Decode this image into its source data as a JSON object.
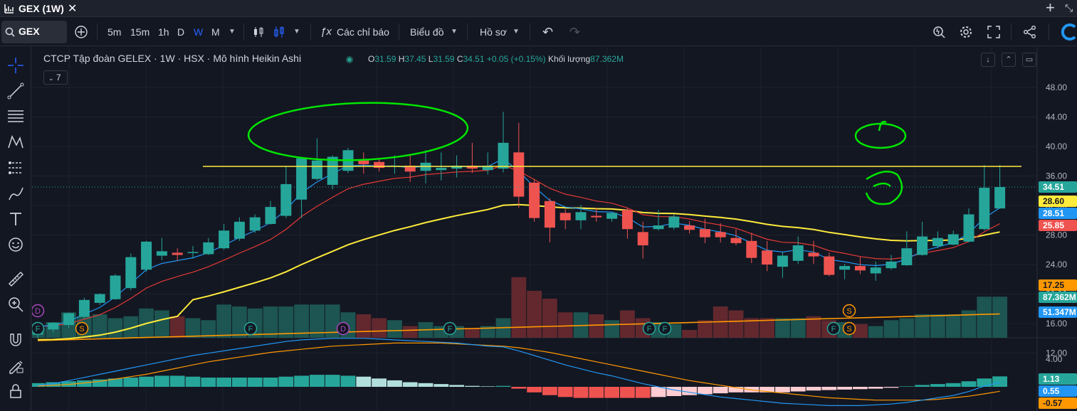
{
  "titlebar": {
    "title": "GEX (1W)"
  },
  "toolbar": {
    "symbol": "GEX",
    "intervals": [
      "5m",
      "15m",
      "1h",
      "D",
      "W",
      "M"
    ],
    "active_interval": "W",
    "indicators_label": "Các chỉ báo",
    "chart_label": "Biểu đồ",
    "profile_label": "Hồ sơ"
  },
  "legend": {
    "title": "CTCP Tập đoàn GELEX · 1W · HSX · Mô hình Heikin Ashi",
    "o_key": "O",
    "o_val": "31.59",
    "h_key": "H",
    "h_val": "37.45",
    "l_key": "L",
    "l_val": "31.59",
    "c_key": "C",
    "c_val": "34.51",
    "change": "+0.05 (+0.15%)",
    "vol_key": "Khối lượng",
    "vol_val": "87.362M",
    "indicator_count": "7"
  },
  "chart_data": {
    "type": "candlestick",
    "candle_style": "Heikin Ashi",
    "price_axis_ticks": [
      "48.00",
      "44.00",
      "40.00",
      "36.00",
      "32.00",
      "28.00",
      "24.00",
      "20.00",
      "16.00",
      "12.00"
    ],
    "osc_axis_ticks": [
      "4.00"
    ],
    "price_range": [
      10.0,
      50.0
    ],
    "colors": {
      "up": "#26a69a",
      "down": "#ef5350",
      "ema_fast": "#2196f3",
      "ema_mid": "#e53935",
      "ma_slow": "#ffeb3b",
      "ma_long": "#ff9800",
      "hline": "#ffeb3b",
      "annotation": "#00e600"
    },
    "candles": [
      {
        "o": 14.5,
        "h": 15.6,
        "l": 14.0,
        "c": 15.6
      },
      {
        "o": 15.2,
        "h": 16.2,
        "l": 14.8,
        "c": 16.1
      },
      {
        "o": 15.8,
        "h": 17.5,
        "l": 15.4,
        "c": 17.4
      },
      {
        "o": 16.9,
        "h": 19.5,
        "l": 16.7,
        "c": 19.2
      },
      {
        "o": 18.8,
        "h": 20.1,
        "l": 18.5,
        "c": 20.0
      },
      {
        "o": 19.3,
        "h": 22.7,
        "l": 19.2,
        "c": 22.5
      },
      {
        "o": 20.8,
        "h": 25.5,
        "l": 20.5,
        "c": 25.0
      },
      {
        "o": 23.3,
        "h": 27.2,
        "l": 23.0,
        "c": 27.1
      },
      {
        "o": 25.2,
        "h": 27.6,
        "l": 24.6,
        "c": 25.8
      },
      {
        "o": 25.6,
        "h": 26.2,
        "l": 24.5,
        "c": 25.3
      },
      {
        "o": 25.6,
        "h": 26.5,
        "l": 24.8,
        "c": 25.7
      },
      {
        "o": 25.4,
        "h": 27.6,
        "l": 25.3,
        "c": 27.0
      },
      {
        "o": 26.2,
        "h": 29.5,
        "l": 26.0,
        "c": 28.6
      },
      {
        "o": 27.5,
        "h": 30.4,
        "l": 27.2,
        "c": 29.8
      },
      {
        "o": 28.6,
        "h": 30.8,
        "l": 28.3,
        "c": 30.4
      },
      {
        "o": 29.5,
        "h": 32.6,
        "l": 29.4,
        "c": 31.8
      },
      {
        "o": 30.6,
        "h": 37.4,
        "l": 30.3,
        "c": 34.9
      },
      {
        "o": 32.8,
        "h": 38.6,
        "l": 30.3,
        "c": 38.4
      },
      {
        "o": 35.6,
        "h": 41.1,
        "l": 35.4,
        "c": 38.1
      },
      {
        "o": 34.8,
        "h": 38.8,
        "l": 34.2,
        "c": 38.6
      },
      {
        "o": 36.7,
        "h": 39.8,
        "l": 36.4,
        "c": 39.5
      },
      {
        "o": 38.1,
        "h": 39.2,
        "l": 36.3,
        "c": 37.6
      },
      {
        "o": 37.9,
        "h": 38.5,
        "l": 36.6,
        "c": 37.1
      },
      {
        "o": 37.4,
        "h": 38.8,
        "l": 36.3,
        "c": 37.4
      },
      {
        "o": 37.4,
        "h": 38.8,
        "l": 35.2,
        "c": 36.6
      },
      {
        "o": 36.7,
        "h": 39.5,
        "l": 35.0,
        "c": 37.8
      },
      {
        "o": 36.8,
        "h": 39.2,
        "l": 35.4,
        "c": 37.1
      },
      {
        "o": 37.0,
        "h": 38.8,
        "l": 35.8,
        "c": 37.4
      },
      {
        "o": 37.4,
        "h": 40.5,
        "l": 36.4,
        "c": 37.0
      },
      {
        "o": 36.8,
        "h": 39.2,
        "l": 36.2,
        "c": 37.4
      },
      {
        "o": 37.0,
        "h": 44.7,
        "l": 36.5,
        "c": 40.5
      },
      {
        "o": 39.2,
        "h": 43.2,
        "l": 31.7,
        "c": 33.2
      },
      {
        "o": 35.1,
        "h": 35.6,
        "l": 29.8,
        "c": 30.3
      },
      {
        "o": 32.6,
        "h": 33.0,
        "l": 27.0,
        "c": 29.0
      },
      {
        "o": 31.0,
        "h": 31.5,
        "l": 28.8,
        "c": 30.0
      },
      {
        "o": 30.0,
        "h": 32.1,
        "l": 28.8,
        "c": 31.1
      },
      {
        "o": 30.6,
        "h": 31.7,
        "l": 29.8,
        "c": 30.4
      },
      {
        "o": 30.2,
        "h": 31.0,
        "l": 29.8,
        "c": 31.0
      },
      {
        "o": 31.4,
        "h": 31.6,
        "l": 27.5,
        "c": 28.8
      },
      {
        "o": 28.4,
        "h": 29.8,
        "l": 24.8,
        "c": 26.6
      },
      {
        "o": 28.8,
        "h": 31.4,
        "l": 28.6,
        "c": 29.3
      },
      {
        "o": 29.0,
        "h": 30.8,
        "l": 28.7,
        "c": 30.5
      },
      {
        "o": 29.3,
        "h": 29.9,
        "l": 28.2,
        "c": 28.7
      },
      {
        "o": 28.8,
        "h": 30.2,
        "l": 26.9,
        "c": 27.7
      },
      {
        "o": 28.4,
        "h": 29.6,
        "l": 27.0,
        "c": 27.7
      },
      {
        "o": 27.6,
        "h": 28.8,
        "l": 26.6,
        "c": 26.9
      },
      {
        "o": 27.2,
        "h": 28.3,
        "l": 24.2,
        "c": 24.9
      },
      {
        "o": 25.9,
        "h": 27.2,
        "l": 23.1,
        "c": 24.0
      },
      {
        "o": 23.7,
        "h": 25.7,
        "l": 22.2,
        "c": 25.2
      },
      {
        "o": 24.5,
        "h": 27.8,
        "l": 24.1,
        "c": 26.6
      },
      {
        "o": 25.6,
        "h": 27.2,
        "l": 24.1,
        "c": 25.1
      },
      {
        "o": 25.1,
        "h": 25.6,
        "l": 22.4,
        "c": 22.6
      },
      {
        "o": 23.3,
        "h": 24.1,
        "l": 22.0,
        "c": 23.8
      },
      {
        "o": 23.8,
        "h": 25.0,
        "l": 22.7,
        "c": 23.2
      },
      {
        "o": 22.8,
        "h": 24.4,
        "l": 21.8,
        "c": 23.6
      },
      {
        "o": 23.5,
        "h": 25.3,
        "l": 23.3,
        "c": 24.4
      },
      {
        "o": 23.9,
        "h": 28.5,
        "l": 23.8,
        "c": 26.2
      },
      {
        "o": 25.3,
        "h": 29.8,
        "l": 25.2,
        "c": 27.8
      },
      {
        "o": 26.5,
        "h": 28.5,
        "l": 26.2,
        "c": 27.6
      },
      {
        "o": 26.7,
        "h": 28.6,
        "l": 26.6,
        "c": 28.1
      },
      {
        "o": 27.1,
        "h": 31.6,
        "l": 27.0,
        "c": 30.8
      },
      {
        "o": 28.8,
        "h": 37.5,
        "l": 28.6,
        "c": 34.4
      },
      {
        "o": 31.6,
        "h": 37.5,
        "l": 31.6,
        "c": 34.5
      }
    ],
    "horizontal_line": 37.3,
    "current_price_label": "34.51",
    "price_labels": [
      "28.60",
      "28.51",
      "25.85",
      "17.25"
    ],
    "volume_labels": [
      "87.362M",
      "51.347M"
    ],
    "osc_labels": [
      "1.13",
      "0.55",
      "-0.57"
    ]
  }
}
